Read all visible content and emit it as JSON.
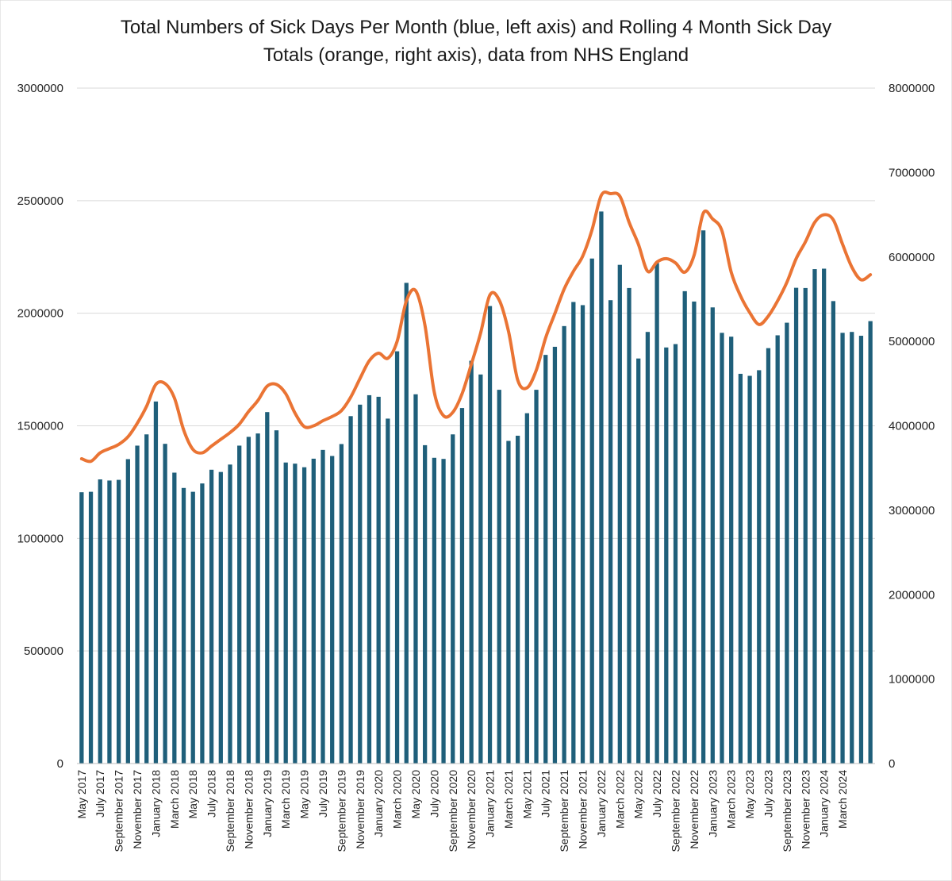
{
  "chart_data": {
    "type": "bar",
    "title_lines": [
      "Total Numbers of Sick Days Per Month (blue, left axis) and Rolling 4 Month Sick Day",
      "Totals (orange, right axis), data from NHS England"
    ],
    "xlabel": "",
    "ylabel": "",
    "grid": true,
    "legend": "none",
    "y_left": {
      "ylim": [
        0,
        3000000
      ],
      "ticks": [
        "0",
        "500000",
        "1000000",
        "1500000",
        "2000000",
        "2500000",
        "3000000"
      ]
    },
    "y_right": {
      "ylim": [
        0,
        8000000
      ],
      "ticks": [
        "0",
        "1000000",
        "2000000",
        "3000000",
        "4000000",
        "5000000",
        "6000000",
        "7000000",
        "8000000"
      ]
    },
    "x_labels": [
      "May 2017",
      "July 2017",
      "September 2017",
      "November 2017",
      "January 2018",
      "March 2018",
      "May 2018",
      "July 2018",
      "September 2018",
      "November 2018",
      "January 2019",
      "March 2019",
      "May 2019",
      "July 2019",
      "September 2019",
      "November 2019",
      "January 2020",
      "March 2020",
      "May 2020",
      "July 2020",
      "September 2020",
      "November 2020",
      "January 2021",
      "March 2021",
      "May 2021",
      "July 2021",
      "September 2021",
      "November 2021",
      "January 2022",
      "March 2022",
      "May 2022",
      "July 2022",
      "September 2022",
      "November 2022",
      "January 2023",
      "March 2023",
      "May 2023",
      "July 2023",
      "September 2023",
      "November 2023",
      "January 2024",
      "March 2024"
    ],
    "series": [
      {
        "kind": "bar",
        "axis": "left",
        "color": "#1f5f7a",
        "values": [
          1205000,
          1207000,
          1262000,
          1257000,
          1260000,
          1352000,
          1412000,
          1462000,
          1608000,
          1420000,
          1292000,
          1224000,
          1207000,
          1244000,
          1305000,
          1295000,
          1328000,
          1412000,
          1451000,
          1466000,
          1561000,
          1480000,
          1337000,
          1332000,
          1316000,
          1354000,
          1393000,
          1366000,
          1419000,
          1543000,
          1594000,
          1636000,
          1629000,
          1532000,
          1831000,
          2135000,
          1640000,
          1414000,
          1358000,
          1353000,
          1462000,
          1579000,
          1789000,
          1728000,
          2032000,
          1660000,
          1433000,
          1456000,
          1556000,
          1660000,
          1815000,
          1851000,
          1943000,
          2050000,
          2036000,
          2243000,
          2452000,
          2058000,
          2215000,
          2112000,
          1799000,
          1917000,
          2223000,
          1848000,
          1863000,
          2098000,
          2052000,
          2368000,
          2026000,
          1913000,
          1896000,
          1731000,
          1722000,
          1747000,
          1845000,
          1902000,
          1958000,
          2113000,
          2112000,
          2196000,
          2198000,
          2054000,
          1913000,
          1917000,
          1900000,
          1965000
        ]
      },
      {
        "kind": "line",
        "axis": "right",
        "color": "#ea7434",
        "values": [
          3610000,
          3580000,
          3680000,
          3730000,
          3780000,
          3870000,
          4030000,
          4230000,
          4490000,
          4500000,
          4330000,
          3950000,
          3720000,
          3680000,
          3760000,
          3840000,
          3920000,
          4020000,
          4170000,
          4300000,
          4470000,
          4490000,
          4380000,
          4150000,
          3990000,
          4000000,
          4060000,
          4110000,
          4180000,
          4340000,
          4560000,
          4770000,
          4860000,
          4800000,
          5000000,
          5480000,
          5600000,
          5190000,
          4400000,
          4120000,
          4160000,
          4380000,
          4730000,
          5100000,
          5550000,
          5490000,
          5120000,
          4540000,
          4450000,
          4660000,
          5040000,
          5330000,
          5620000,
          5830000,
          6010000,
          6320000,
          6730000,
          6750000,
          6720000,
          6410000,
          6150000,
          5830000,
          5940000,
          5980000,
          5930000,
          5820000,
          6020000,
          6520000,
          6450000,
          6310000,
          5820000,
          5540000,
          5340000,
          5200000,
          5300000,
          5480000,
          5700000,
          5980000,
          6180000,
          6410000,
          6500000,
          6440000,
          6150000,
          5880000,
          5730000,
          5790000
        ]
      }
    ]
  }
}
